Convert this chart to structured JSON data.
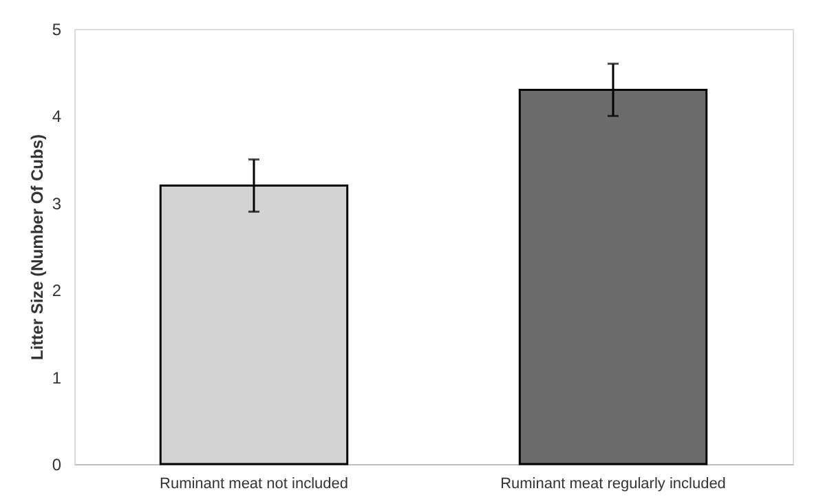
{
  "chart_data": {
    "type": "bar",
    "ylabel": "Litter Size (Number Of Cubs)",
    "categories": [
      "Ruminant meat not  included",
      "Ruminant meat regularly included"
    ],
    "values": [
      3.2,
      4.3
    ],
    "errors": [
      0.3,
      0.3
    ],
    "colors": [
      "#d3d3d3",
      "#6b6b6b"
    ],
    "ylim": [
      0,
      5
    ],
    "yticks": [
      0,
      1,
      2,
      3,
      4,
      5
    ],
    "grid": false
  }
}
